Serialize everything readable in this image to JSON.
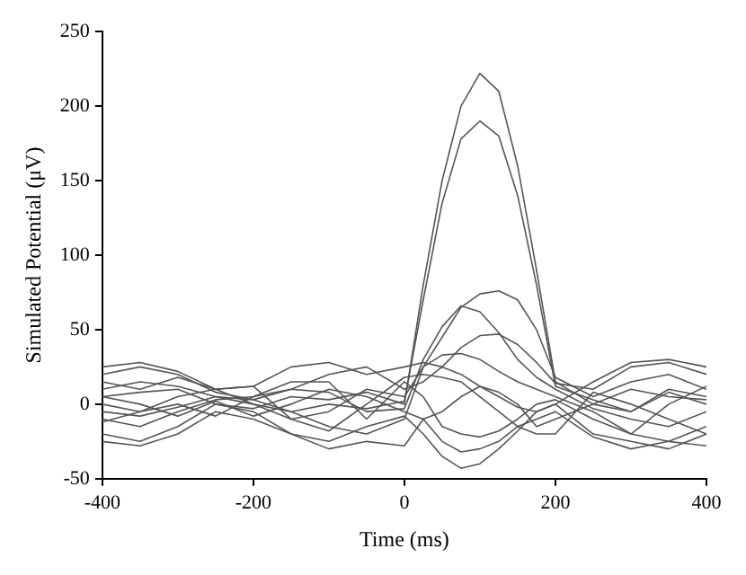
{
  "chart_data": {
    "type": "line",
    "xlabel": "Time (ms)",
    "ylabel": "Simulated Potential (μV)",
    "x": [
      -400,
      -350,
      -300,
      -250,
      -200,
      -150,
      -100,
      -50,
      0,
      25,
      50,
      75,
      100,
      125,
      150,
      175,
      200,
      250,
      300,
      350,
      400
    ],
    "xlim": [
      -400,
      400
    ],
    "xticks": [
      -400,
      -200,
      0,
      200,
      400
    ],
    "ylim": [
      -50,
      250
    ],
    "yticks": [
      -50,
      0,
      50,
      100,
      150,
      200,
      250
    ],
    "grid": false,
    "legend": false,
    "marker": "none",
    "line_style": "solid",
    "series": [
      {
        "color": "#555555",
        "values": [
          5,
          8,
          10,
          0,
          -3,
          5,
          3,
          8,
          0,
          80,
          150,
          200,
          222,
          210,
          160,
          90,
          15,
          0,
          10,
          5,
          3
        ]
      },
      {
        "color": "#555555",
        "values": [
          -5,
          -8,
          -2,
          5,
          3,
          -5,
          0,
          -3,
          2,
          70,
          135,
          178,
          190,
          180,
          140,
          80,
          12,
          3,
          -5,
          8,
          0
        ]
      },
      {
        "color": "#555555",
        "values": [
          10,
          15,
          12,
          5,
          0,
          -10,
          -5,
          10,
          5,
          25,
          45,
          65,
          74,
          76,
          70,
          50,
          18,
          5,
          15,
          20,
          10
        ]
      },
      {
        "color": "#555555",
        "values": [
          -10,
          -15,
          -5,
          3,
          5,
          10,
          8,
          -5,
          -3,
          30,
          52,
          66,
          62,
          48,
          30,
          18,
          10,
          -3,
          -10,
          -15,
          -5
        ]
      },
      {
        "color": "#555555",
        "values": [
          20,
          25,
          20,
          8,
          3,
          10,
          20,
          25,
          10,
          15,
          25,
          38,
          46,
          47,
          40,
          28,
          14,
          10,
          25,
          28,
          20
        ]
      },
      {
        "color": "#555555",
        "values": [
          0,
          -5,
          5,
          10,
          0,
          -5,
          -15,
          -20,
          -10,
          25,
          33,
          34,
          30,
          22,
          15,
          10,
          5,
          -5,
          -20,
          -25,
          -15
        ]
      },
      {
        "color": "#555555",
        "values": [
          -20,
          -25,
          -15,
          0,
          -5,
          -20,
          -25,
          -15,
          -8,
          -20,
          -35,
          -43,
          -40,
          -30,
          -18,
          -5,
          0,
          -20,
          -25,
          -30,
          -20
        ]
      },
      {
        "color": "#555555",
        "values": [
          25,
          28,
          22,
          10,
          12,
          25,
          28,
          20,
          25,
          28,
          25,
          20,
          12,
          5,
          -2,
          -5,
          0,
          15,
          28,
          30,
          25
        ]
      },
      {
        "color": "#555555",
        "values": [
          -25,
          -28,
          -20,
          -5,
          -10,
          -20,
          -30,
          -25,
          -28,
          -10,
          -25,
          -32,
          -30,
          -25,
          -15,
          -10,
          -5,
          -22,
          -30,
          -25,
          -28
        ]
      },
      {
        "color": "#555555",
        "values": [
          5,
          0,
          -8,
          2,
          -8,
          0,
          10,
          5,
          -5,
          -10,
          -5,
          5,
          12,
          8,
          0,
          -15,
          -10,
          0,
          -5,
          10,
          5
        ]
      },
      {
        "color": "#555555",
        "values": [
          15,
          10,
          18,
          10,
          12,
          -10,
          -18,
          0,
          18,
          20,
          18,
          15,
          5,
          -5,
          -15,
          -20,
          -20,
          8,
          0,
          -10,
          -20
        ]
      },
      {
        "color": "#555555",
        "values": [
          -12,
          -5,
          0,
          -8,
          5,
          15,
          15,
          -10,
          15,
          5,
          -15,
          -20,
          -22,
          -18,
          -10,
          0,
          3,
          -10,
          -20,
          0,
          12
        ]
      }
    ]
  }
}
